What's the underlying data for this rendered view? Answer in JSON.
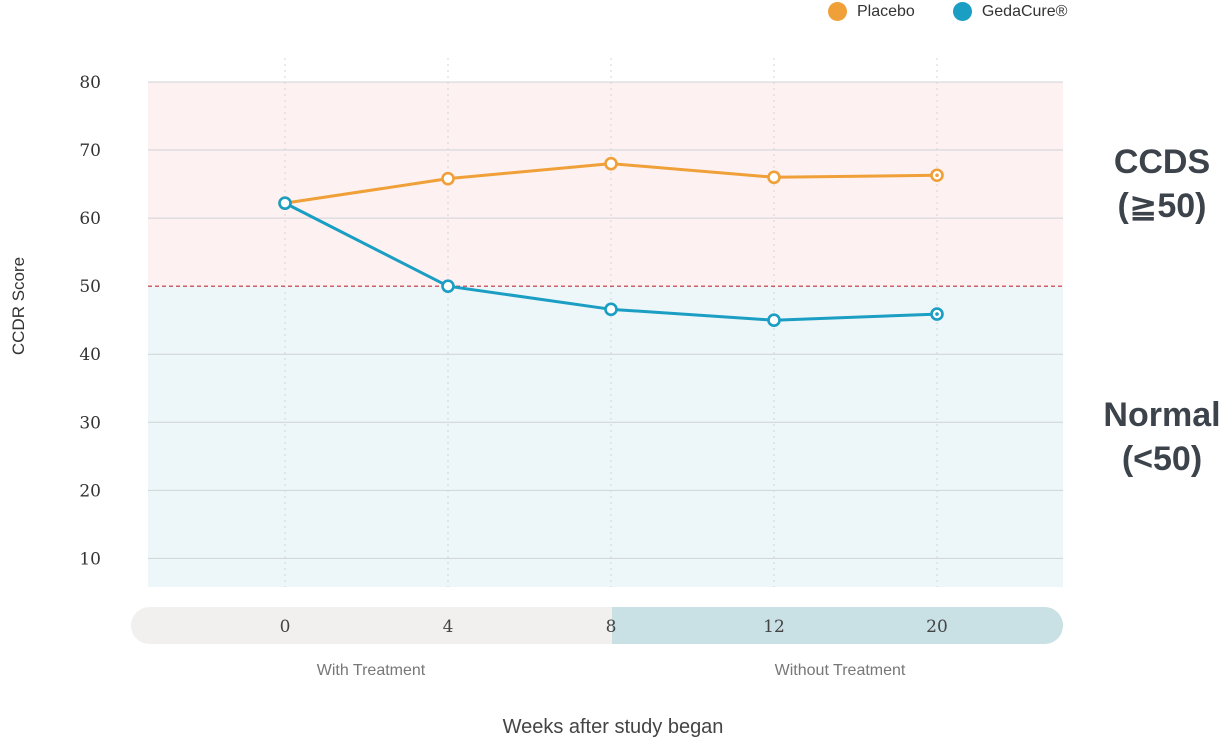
{
  "legend": [
    {
      "name": "Placebo",
      "color": "#f0a038"
    },
    {
      "name": "GedaCure®",
      "color": "#1a9ec3"
    }
  ],
  "ylabel": "CCDR Score",
  "xlabel": "Weeks after study began",
  "zones": {
    "high": {
      "name": "CCDS",
      "range": "(≧50)"
    },
    "low": {
      "name": "Normal",
      "range": "(<50)"
    }
  },
  "phases": {
    "with": "With Treatment",
    "without": "Without Treatment"
  },
  "chart_data": {
    "type": "line",
    "categories": [
      "0",
      "4",
      "8",
      "12",
      "20"
    ],
    "yticks": [
      10,
      20,
      30,
      40,
      50,
      60,
      70,
      80
    ],
    "ylim": [
      5.8,
      80
    ],
    "threshold": 50,
    "series": [
      {
        "name": "Placebo",
        "color": "#f0a038",
        "values": [
          62.2,
          65.8,
          68.0,
          66.0,
          66.3
        ]
      },
      {
        "name": "GedaCure®",
        "color": "#1a9ec3",
        "values": [
          62.2,
          50.0,
          46.6,
          45.0,
          45.9
        ]
      }
    ],
    "zone_colors": {
      "high": "#fdf1f1",
      "low": "#edf6f8",
      "threshold_line": "#c0303a",
      "axis_pill_left": "#f1f0ee",
      "axis_pill_right": "#c9e0e5"
    }
  }
}
